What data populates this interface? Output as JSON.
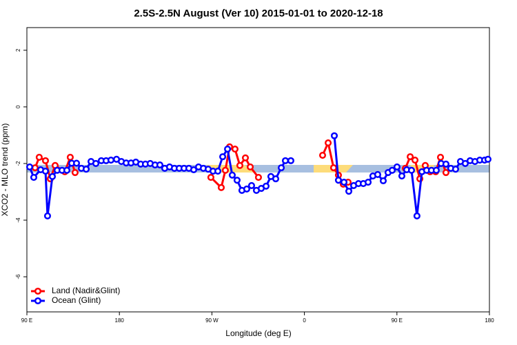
{
  "chart_data": {
    "type": "line",
    "title": "2.5S-2.5N August (Ver 10)   2015-01-01 to 2020-12-18",
    "xlabel": "Longitude (deg E)",
    "ylabel": "XCO2 - MLO trend (ppm)",
    "xlim": [
      90,
      540
    ],
    "ylim": [
      -7.24,
      2.8
    ],
    "xticks": [
      {
        "value": 90,
        "label": "90 E"
      },
      180,
      {
        "value": 270,
        "label": "90 W"
      },
      {
        "value": 360,
        "label": "0"
      },
      {
        "value": 450,
        "label": "90 E"
      },
      {
        "value": 540,
        "label": "180"
      }
    ],
    "yticks": [
      2,
      0,
      -2,
      -4,
      -6
    ],
    "legend": "bottom-left",
    "series": [
      {
        "name": "Land (Nadir&Glint)",
        "color": "#ff0000",
        "x": [
          98.0,
          102.0,
          108.1,
          112.8,
          117.5,
          126.9,
          132.2,
          136.9,
          null,
          269.0,
          279.1,
          283.1,
          287.2,
          292.5,
          297.2,
          302.6,
          307.3,
          315.3,
          null,
          377.7,
          383.1,
          388.4,
          393.1,
          397.8,
          402.5,
          null,
          458.2,
          462.9,
          467.6,
          472.3,
          477.6,
          482.3,
          487.7,
          492.4,
          497.7
        ],
        "values": [
          -2.15,
          -1.78,
          -1.9,
          -2.54,
          -2.07,
          -2.29,
          -1.78,
          -2.32,
          null,
          -2.49,
          -2.85,
          -2.24,
          -1.41,
          -1.49,
          -2.07,
          -1.8,
          -2.12,
          -2.49,
          null,
          -1.71,
          -1.27,
          -2.15,
          -2.41,
          -2.73,
          -2.66,
          null,
          -2.17,
          -1.76,
          -1.88,
          -2.54,
          -2.07,
          -2.29,
          -2.29,
          -1.78,
          -2.32
        ]
      },
      {
        "name": "Ocean (Glint)",
        "color": "#0000ff",
        "x": [
          92.7,
          96.7,
          103.4,
          108.1,
          110.1,
          114.8,
          119.5,
          124.2,
          128.9,
          133.6,
          138.3,
          143.0,
          147.7,
          152.4,
          157.1,
          162.4,
          167.1,
          171.8,
          177.2,
          181.9,
          186.6,
          191.3,
          196.0,
          200.7,
          205.3,
          210.0,
          214.7,
          219.4,
          224.1,
          228.8,
          233.5,
          238.2,
          242.9,
          247.6,
          252.3,
          257.0,
          261.7,
          266.4,
          271.1,
          275.8,
          280.5,
          285.2,
          289.8,
          294.5,
          299.2,
          303.9,
          308.6,
          313.3,
          318.0,
          322.7,
          327.4,
          332.1,
          337.5,
          341.5,
          346.8,
          null,
          389.1,
          393.1,
          398.5,
          403.2,
          407.9,
          412.6,
          417.3,
          422.0,
          426.6,
          431.3,
          436.7,
          441.4,
          445.4,
          450.1,
          454.8,
          459.5,
          464.2,
          469.5,
          474.3,
          478.9,
          483.6,
          488.3,
          493.0,
          497.7,
          502.4,
          507.1,
          511.8,
          516.5,
          521.2,
          525.9,
          530.6,
          535.3,
          538.6
        ],
        "values": [
          -2.12,
          -2.49,
          -2.22,
          -2.27,
          -3.85,
          -2.46,
          -2.24,
          -2.24,
          -2.24,
          -1.99,
          -1.99,
          -2.17,
          -2.2,
          -1.93,
          -2.0,
          -1.9,
          -1.9,
          -1.88,
          -1.85,
          -1.93,
          -1.98,
          -1.98,
          -1.95,
          -2.02,
          -2.02,
          -2.0,
          -2.05,
          -2.05,
          -2.17,
          -2.12,
          -2.17,
          -2.17,
          -2.17,
          -2.17,
          -2.22,
          -2.12,
          -2.17,
          -2.2,
          -2.27,
          -2.27,
          -1.76,
          -1.49,
          -2.41,
          -2.59,
          -2.95,
          -2.9,
          -2.78,
          -2.95,
          -2.88,
          -2.8,
          -2.46,
          -2.54,
          -2.15,
          -1.9,
          -1.9,
          null,
          -1.02,
          -2.59,
          -2.66,
          -2.98,
          -2.78,
          -2.71,
          -2.71,
          -2.66,
          -2.44,
          -2.39,
          -2.61,
          -2.32,
          -2.24,
          -2.12,
          -2.44,
          -2.22,
          -2.24,
          -3.85,
          -2.29,
          -2.24,
          -2.24,
          -2.24,
          -2.0,
          -2.02,
          -2.17,
          -2.2,
          -1.93,
          -2.0,
          -1.9,
          -1.93,
          -1.88,
          -1.88,
          -1.85
        ]
      }
    ]
  }
}
